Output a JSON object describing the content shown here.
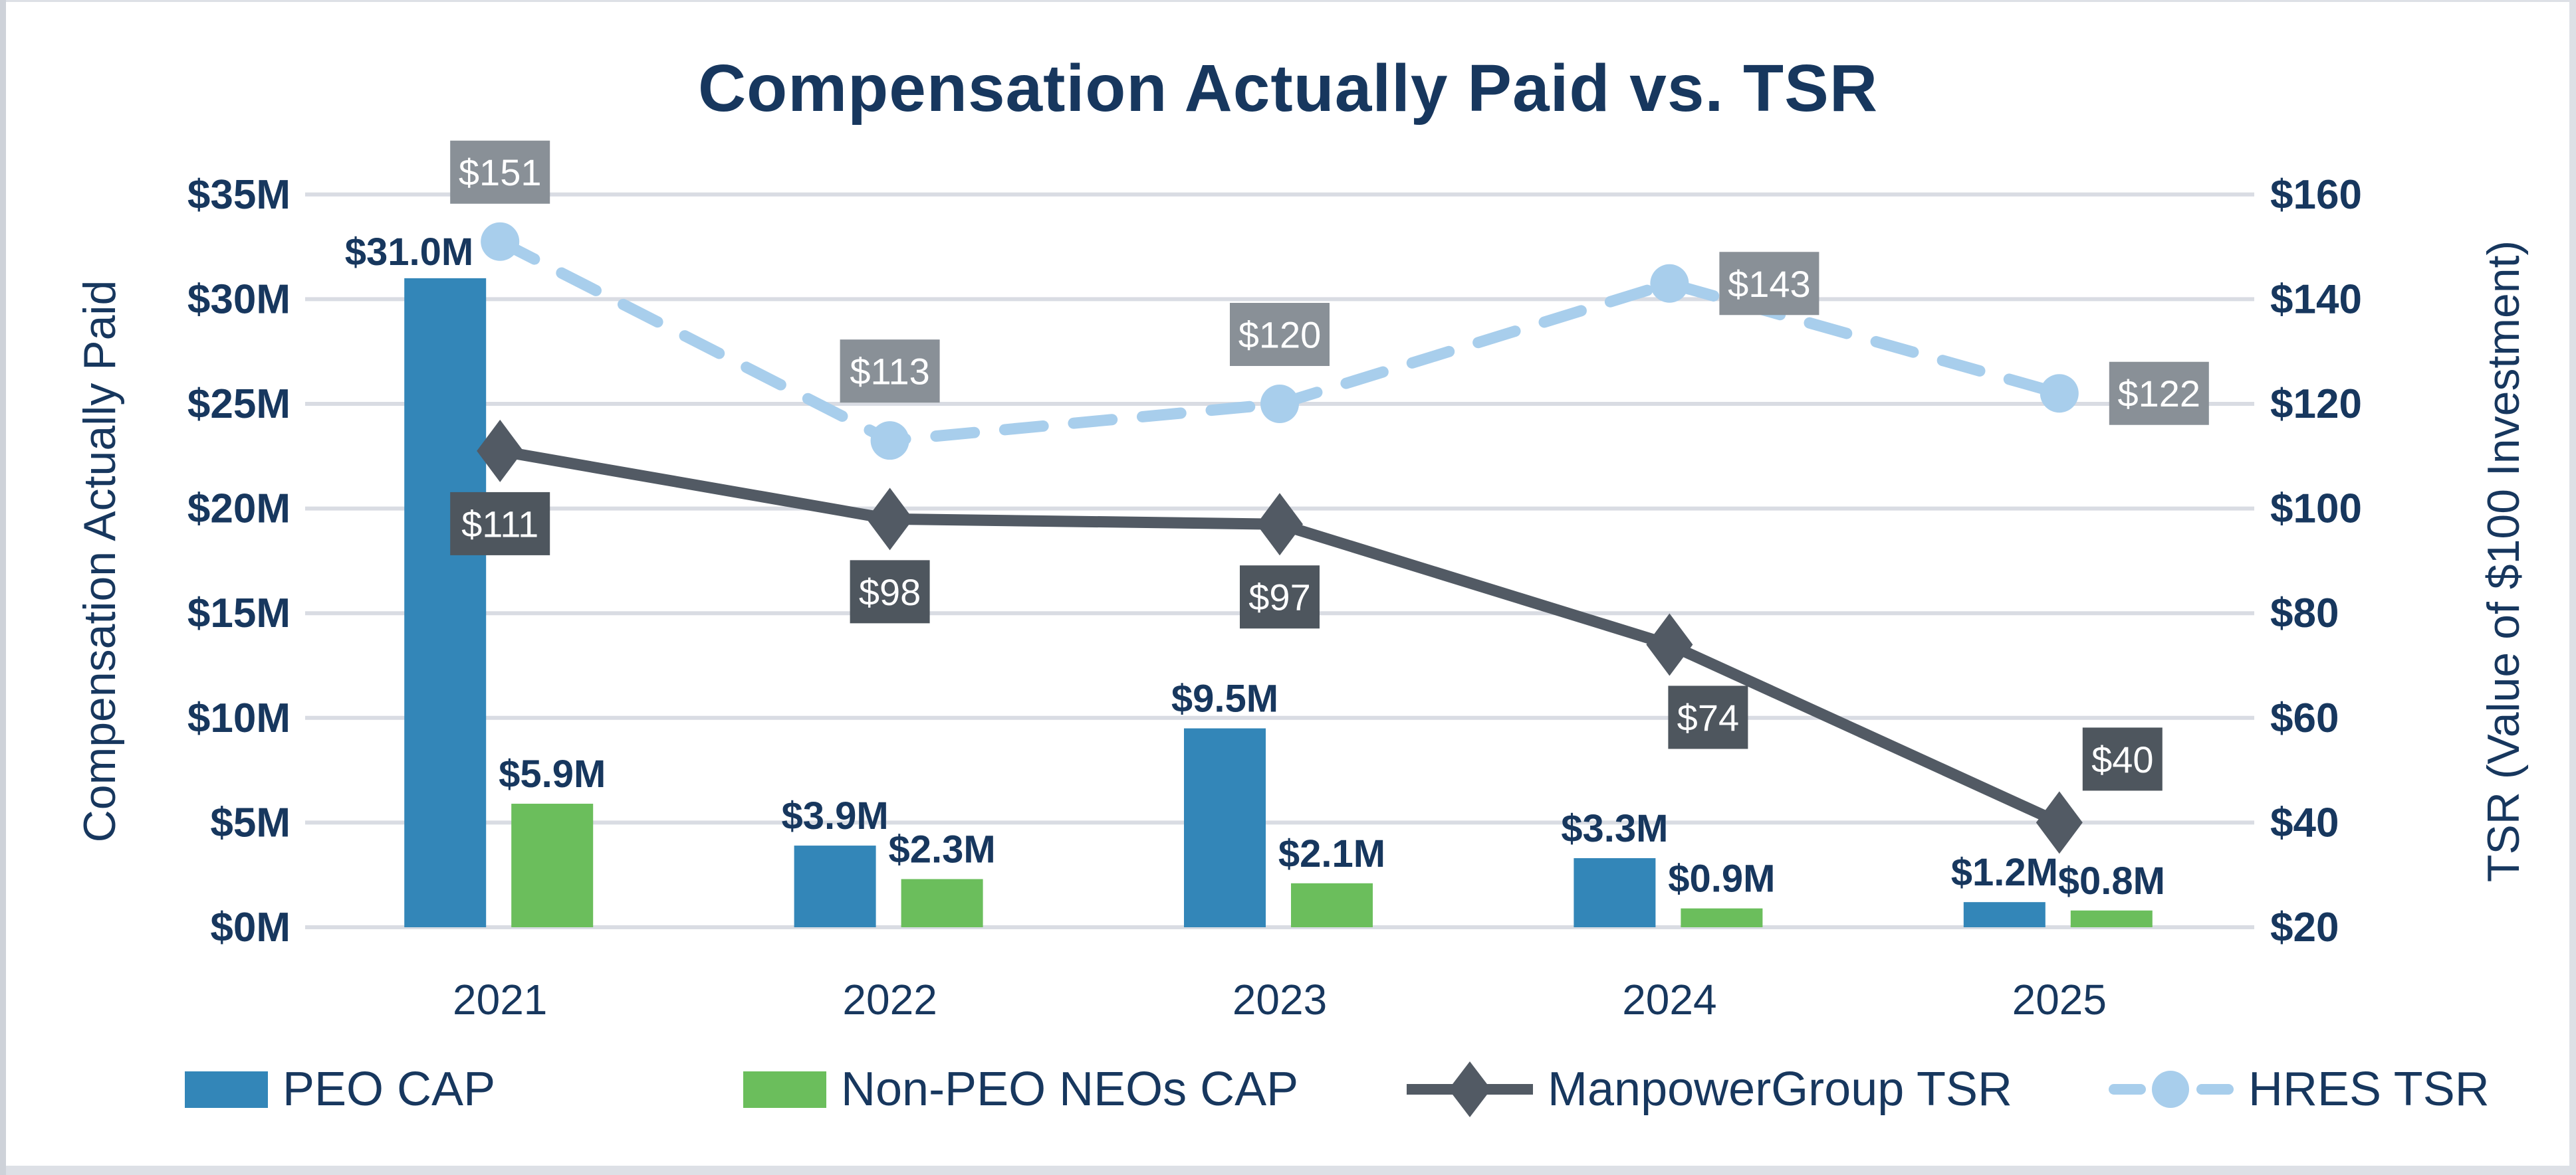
{
  "title": "Compensation Actually Paid vs. TSR",
  "axes": {
    "left": {
      "title": "Compensation Actually Paid",
      "ticks": [
        "$0M",
        "$5M",
        "$10M",
        "$15M",
        "$20M",
        "$25M",
        "$30M",
        "$35M"
      ]
    },
    "right": {
      "title": "TSR (Value of $100 Investment)",
      "ticks": [
        "$20",
        "$40",
        "$60",
        "$80",
        "$100",
        "$120",
        "$140",
        "$160"
      ]
    }
  },
  "chart_data": {
    "type": "combo-bar-line",
    "title": "Compensation Actually Paid vs. TSR",
    "categories": [
      "2021",
      "2022",
      "2023",
      "2024",
      "2025"
    ],
    "left_axis_range": [
      0,
      35
    ],
    "left_axis_step": 5,
    "right_axis_range": [
      20,
      160
    ],
    "right_axis_step": 20,
    "grid": true,
    "legend_position": "bottom",
    "series": [
      {
        "name": "PEO CAP",
        "type": "bar",
        "axis": "left",
        "color": "#3386B8",
        "values": [
          31.0,
          3.9,
          9.5,
          3.3,
          1.2
        ],
        "data_labels": [
          "$31.0M",
          "$3.9M",
          "$9.5M",
          "$3.3M",
          "$1.2M"
        ]
      },
      {
        "name": "Non-PEO NEOs CAP",
        "type": "bar",
        "axis": "left",
        "color": "#6BBE5C",
        "values": [
          5.9,
          2.3,
          2.1,
          0.9,
          0.8
        ],
        "data_labels": [
          "$5.9M",
          "$2.3M",
          "$2.1M",
          "$0.9M",
          "$0.8M"
        ]
      },
      {
        "name": "ManpowerGroup TSR",
        "type": "line",
        "axis": "right",
        "color": "#525A64",
        "marker": "diamond",
        "label_box_color": "#4E565E",
        "values": [
          111,
          98,
          97,
          74,
          40
        ],
        "data_labels": [
          "$111",
          "$98",
          "$97",
          "$74",
          "$40"
        ],
        "label_positions": [
          "below",
          "below",
          "below",
          "below-right",
          "above-right"
        ]
      },
      {
        "name": "HRES TSR",
        "type": "line-dashed",
        "axis": "right",
        "color": "#A8CEEC",
        "marker": "circle",
        "label_box_color": "#899097",
        "values": [
          151,
          113,
          120,
          143,
          122
        ],
        "data_labels": [
          "$151",
          "$113",
          "$120",
          "$143",
          "$122"
        ],
        "label_positions": [
          "above",
          "above",
          "above",
          "right",
          "right"
        ]
      }
    ]
  },
  "colors": {
    "navy_text": "#17375E",
    "gridline": "#D9DCE3",
    "box_text": "#FFFFFF",
    "background": "#FFFFFF",
    "frame": "#DDE0E6"
  }
}
